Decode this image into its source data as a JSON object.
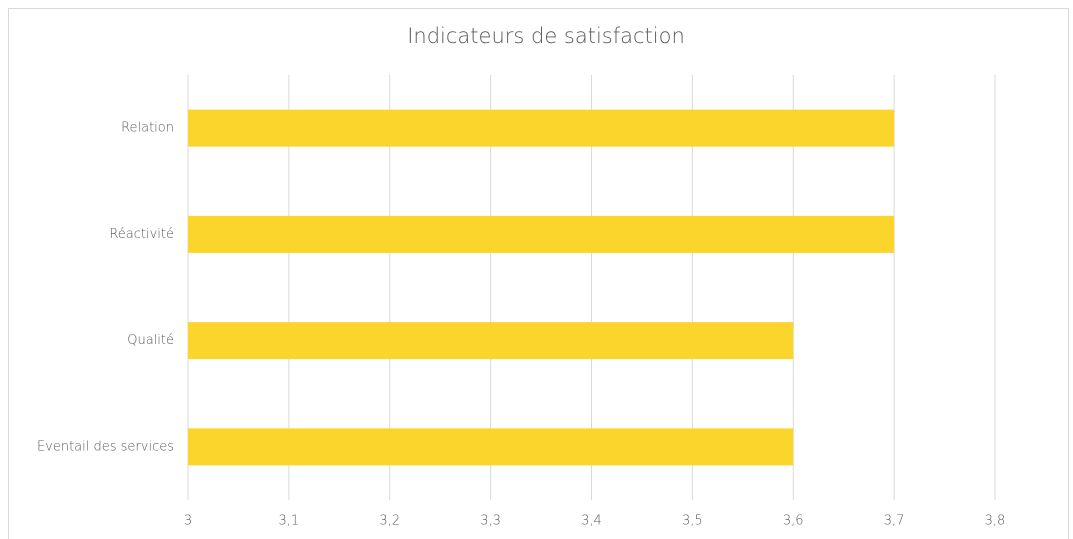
{
  "chart_data": {
    "type": "bar",
    "orientation": "horizontal",
    "title": "Indicateurs de satisfaction",
    "categories": [
      "Relation",
      "Réactivité",
      "Qualité",
      "Eventail des services"
    ],
    "values": [
      3.7,
      3.7,
      3.6,
      3.6
    ],
    "color": "#fbd52b",
    "xlim": [
      3,
      3.8
    ],
    "xticks": [
      3,
      {
        "value": 3.1,
        "label": "3,1"
      },
      {
        "value": 3.2,
        "label": "3,2"
      },
      {
        "value": 3.3,
        "label": "3,3"
      },
      {
        "value": 3.4,
        "label": "3,4"
      },
      {
        "value": 3.5,
        "label": "3,5"
      },
      {
        "value": 3.6,
        "label": "3,6"
      },
      {
        "value": 3.7,
        "label": "3,7"
      },
      {
        "value": 3.8,
        "label": "3,8"
      }
    ],
    "grid": true
  }
}
